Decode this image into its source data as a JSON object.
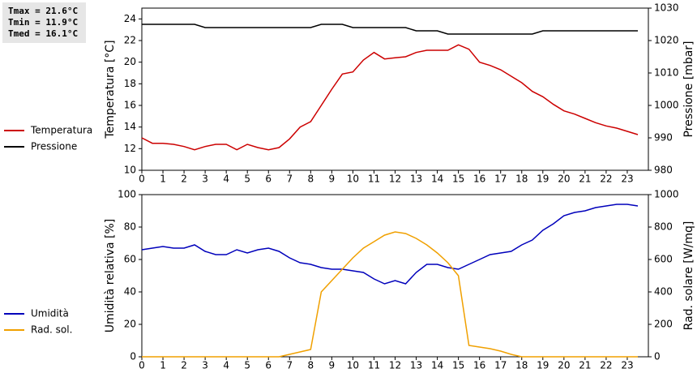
{
  "chart_data": [
    {
      "type": "line",
      "annotations": [
        "Tmax = 21.6°C",
        "Tmin = 11.9°C",
        "Tmed = 16.1°C"
      ],
      "ylabel": "Temperatura [°C]",
      "y2label": "Pressione [mbar]",
      "x": [
        0,
        0.5,
        1,
        1.5,
        2,
        2.5,
        3,
        3.5,
        4,
        4.5,
        5,
        5.5,
        6,
        6.5,
        7,
        7.5,
        8,
        8.5,
        9,
        9.5,
        10,
        10.5,
        11,
        11.5,
        12,
        12.5,
        13,
        13.5,
        14,
        14.5,
        15,
        15.5,
        16,
        16.5,
        17,
        17.5,
        18,
        18.5,
        19,
        19.5,
        20,
        20.5,
        21,
        21.5,
        22,
        22.5,
        23,
        23.5
      ],
      "xlim": [
        0,
        24
      ],
      "xticks": [
        0,
        1,
        2,
        3,
        4,
        5,
        6,
        7,
        8,
        9,
        10,
        11,
        12,
        13,
        14,
        15,
        16,
        17,
        18,
        19,
        20,
        21,
        22,
        23
      ],
      "ylim": [
        10,
        25
      ],
      "yticks": [
        10,
        12,
        14,
        16,
        18,
        20,
        22,
        24
      ],
      "y2lim": [
        980,
        1030
      ],
      "y2ticks": [
        980,
        990,
        1000,
        1010,
        1020,
        1030
      ],
      "series": [
        {
          "name": "Temperatura",
          "color": "#cc0000",
          "values": [
            13.0,
            12.5,
            12.5,
            12.4,
            12.2,
            11.9,
            12.2,
            12.4,
            12.4,
            11.9,
            12.4,
            12.1,
            11.9,
            12.1,
            12.9,
            14.0,
            14.5,
            16.0,
            17.5,
            18.9,
            19.1,
            20.2,
            20.9,
            20.3,
            20.4,
            20.5,
            20.9,
            21.1,
            21.1,
            21.1,
            21.6,
            21.2,
            20.0,
            19.7,
            19.3,
            18.7,
            18.1,
            17.3,
            16.8,
            16.1,
            15.5,
            15.2,
            14.8,
            14.4,
            14.1,
            13.9,
            13.6,
            13.3
          ]
        },
        {
          "name": "Pressione",
          "color": "#000000",
          "axis": "y2",
          "values": [
            1025,
            1025,
            1025,
            1025,
            1025,
            1025,
            1024,
            1024,
            1024,
            1024,
            1024,
            1024,
            1024,
            1024,
            1024,
            1024,
            1024,
            1025,
            1025,
            1025,
            1024,
            1024,
            1024,
            1024,
            1024,
            1024,
            1023,
            1023,
            1023,
            1022,
            1022,
            1022,
            1022,
            1022,
            1022,
            1022,
            1022,
            1022,
            1023,
            1023,
            1023,
            1023,
            1023,
            1023,
            1023,
            1023,
            1023,
            1023
          ]
        }
      ]
    },
    {
      "type": "line",
      "ylabel": "Umidità relativa [%]",
      "y2label": "Rad. solare [W/mq]",
      "x": [
        0,
        0.5,
        1,
        1.5,
        2,
        2.5,
        3,
        3.5,
        4,
        4.5,
        5,
        5.5,
        6,
        6.5,
        7,
        7.5,
        8,
        8.5,
        9,
        9.5,
        10,
        10.5,
        11,
        11.5,
        12,
        12.5,
        13,
        13.5,
        14,
        14.5,
        15,
        15.5,
        16,
        16.5,
        17,
        17.5,
        18,
        18.5,
        19,
        19.5,
        20,
        20.5,
        21,
        21.5,
        22,
        22.5,
        23,
        23.5
      ],
      "xlim": [
        0,
        24
      ],
      "xticks": [
        0,
        1,
        2,
        3,
        4,
        5,
        6,
        7,
        8,
        9,
        10,
        11,
        12,
        13,
        14,
        15,
        16,
        17,
        18,
        19,
        20,
        21,
        22,
        23
      ],
      "ylim": [
        0,
        100
      ],
      "yticks": [
        0,
        20,
        40,
        60,
        80,
        100
      ],
      "y2lim": [
        0,
        1000
      ],
      "y2ticks": [
        0,
        200,
        400,
        600,
        800,
        1000
      ],
      "series": [
        {
          "name": "Umidità",
          "color": "#0000bb",
          "values": [
            66,
            67,
            68,
            67,
            67,
            69,
            65,
            63,
            63,
            66,
            64,
            66,
            67,
            65,
            61,
            58,
            57,
            55,
            54,
            54,
            53,
            52,
            48,
            45,
            47,
            45,
            52,
            57,
            57,
            55,
            54,
            57,
            60,
            63,
            64,
            65,
            69,
            72,
            78,
            82,
            87,
            89,
            90,
            92,
            93,
            94,
            94,
            93
          ]
        },
        {
          "name": "Rad. sol.",
          "color": "#f0a000",
          "axis": "y2",
          "values": [
            0,
            0,
            0,
            0,
            0,
            0,
            0,
            0,
            0,
            0,
            0,
            0,
            0,
            0,
            15,
            30,
            45,
            400,
            470,
            540,
            610,
            670,
            710,
            750,
            770,
            760,
            730,
            690,
            640,
            580,
            500,
            70,
            60,
            50,
            35,
            15,
            0,
            0,
            0,
            0,
            0,
            0,
            0,
            0,
            0,
            0,
            0,
            0
          ]
        }
      ]
    }
  ]
}
